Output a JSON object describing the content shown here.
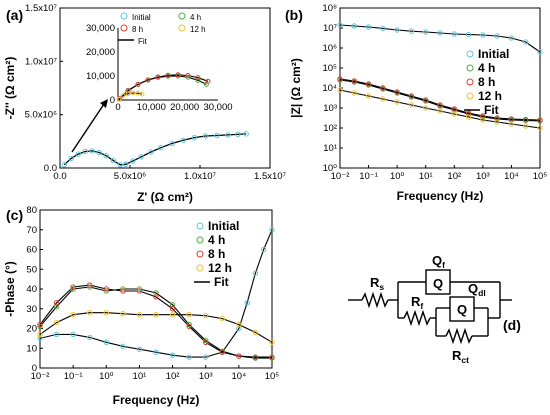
{
  "colors": {
    "Initial": "#5bc8e0",
    "4 h": "#4cae3c",
    "8 h": "#e53935",
    "12 h": "#f2c230",
    "fit": "#000000"
  },
  "chart_data": [
    {
      "id": "a",
      "panel_label": "(a)",
      "type": "scatter",
      "xlabel": "Z' (Ω cm²)",
      "ylabel": "-Z'' (Ω cm²)",
      "xlim": [
        0,
        15000000
      ],
      "ylim": [
        0,
        15000000
      ],
      "x_ticks": [
        "0.0",
        "5.0x10⁶",
        "1.0x10⁷",
        "1.5x10⁷"
      ],
      "y_ticks": [
        "0.0",
        "5.0x10⁶",
        "1.0x10⁷",
        "1.5x10⁷"
      ],
      "legend": [
        "Initial",
        "4 h",
        "8 h",
        "12 h",
        "Fit"
      ],
      "series": [
        {
          "name": "Initial",
          "x": [
            300000,
            800000,
            1300000,
            1800000,
            2300000,
            2800000,
            3300000,
            3800000,
            4300000,
            4700000,
            5200000,
            5800000,
            6500000,
            7200000,
            8000000,
            8800000,
            9600000,
            10400000,
            11200000,
            12000000,
            12700000,
            13300000
          ],
          "y": [
            300000,
            900000,
            1300000,
            1550000,
            1600000,
            1450000,
            1150000,
            700000,
            300000,
            350000,
            650000,
            1050000,
            1500000,
            1900000,
            2300000,
            2600000,
            2850000,
            3000000,
            3050000,
            3100000,
            3150000,
            3200000
          ]
        }
      ],
      "inset": {
        "xlim": [
          0,
          30000
        ],
        "ylim": [
          0,
          30000
        ],
        "x_ticks": [
          "0",
          "10,000",
          "20,000",
          "30,000"
        ],
        "y_ticks": [
          "0",
          "10,000",
          "20,000",
          "30,000"
        ],
        "series": [
          {
            "name": "4 h",
            "x": [
              500,
              3000,
              6000,
              9000,
              12000,
              15000,
              18000,
              21000,
              24000,
              26500
            ],
            "y": [
              500,
              4000,
              6500,
              8300,
              9400,
              9900,
              10000,
              9500,
              8200,
              6500
            ]
          },
          {
            "name": "8 h",
            "x": [
              500,
              3000,
              6000,
              9000,
              12000,
              15000,
              18000,
              21000,
              24000,
              27000
            ],
            "y": [
              500,
              3800,
              6500,
              8400,
              9600,
              10300,
              10500,
              10200,
              9300,
              7800
            ]
          },
          {
            "name": "12 h",
            "x": [
              300,
              1500,
              3000,
              4500,
              6000,
              7200
            ],
            "y": [
              300,
              1800,
              2600,
              2900,
              2800,
              2500
            ]
          }
        ]
      }
    },
    {
      "id": "b",
      "panel_label": "(b)",
      "type": "scatter",
      "xscale": "log",
      "yscale": "log",
      "xlabel": "Frequency (Hz)",
      "ylabel": "|Z| (Ω cm²)",
      "xlim": [
        0.01,
        100000
      ],
      "ylim": [
        1,
        100000000
      ],
      "x_ticks": [
        "10⁻²",
        "10⁻¹",
        "10⁰",
        "10¹",
        "10²",
        "10³",
        "10⁴",
        "10⁵"
      ],
      "y_ticks": [
        "10⁰",
        "10¹",
        "10²",
        "10³",
        "10⁴",
        "10⁵",
        "10⁶",
        "10⁷",
        "10⁸"
      ],
      "legend": [
        "Initial",
        "4 h",
        "8 h",
        "12 h",
        "Fit"
      ],
      "series": [
        {
          "name": "Initial",
          "logf": [
            -2,
            -1.5,
            -1,
            -0.5,
            0,
            0.5,
            1,
            1.5,
            2,
            2.5,
            3,
            3.5,
            4,
            4.5,
            5
          ],
          "logz": [
            7.15,
            7.1,
            7.05,
            6.98,
            6.9,
            6.84,
            6.8,
            6.75,
            6.7,
            6.67,
            6.65,
            6.6,
            6.5,
            6.3,
            5.8
          ]
        },
        {
          "name": "4 h",
          "logf": [
            -2,
            -1.5,
            -1,
            -0.5,
            0,
            0.5,
            1,
            1.5,
            2,
            2.5,
            3,
            3.5,
            4,
            4.5,
            5
          ],
          "logz": [
            4.4,
            4.3,
            4.15,
            3.95,
            3.75,
            3.55,
            3.35,
            3.1,
            2.9,
            2.7,
            2.55,
            2.45,
            2.4,
            2.38,
            2.35
          ]
        },
        {
          "name": "8 h",
          "logf": [
            -2,
            -1.5,
            -1,
            -0.5,
            0,
            0.5,
            1,
            1.5,
            2,
            2.5,
            3,
            3.5,
            4,
            4.5,
            5
          ],
          "logz": [
            4.45,
            4.35,
            4.2,
            4.0,
            3.8,
            3.6,
            3.4,
            3.15,
            2.95,
            2.75,
            2.6,
            2.5,
            2.45,
            2.42,
            2.4
          ]
        },
        {
          "name": "12 h",
          "logf": [
            -2,
            -1.5,
            -1,
            -0.5,
            0,
            0.5,
            1,
            1.5,
            2,
            2.5,
            3,
            3.5,
            4,
            4.5,
            5
          ],
          "logz": [
            3.9,
            3.75,
            3.6,
            3.45,
            3.3,
            3.15,
            3.0,
            2.85,
            2.7,
            2.55,
            2.4,
            2.3,
            2.2,
            2.1,
            2.0
          ]
        }
      ]
    },
    {
      "id": "c",
      "panel_label": "(c)",
      "type": "scatter",
      "xscale": "log",
      "xlabel": "Frequency (Hz)",
      "ylabel": "-Phase (°)",
      "xlim": [
        0.01,
        100000
      ],
      "ylim": [
        0,
        80
      ],
      "x_ticks": [
        "10⁻²",
        "10⁻¹",
        "10⁰",
        "10¹",
        "10²",
        "10³",
        "10⁴",
        "10⁵"
      ],
      "y_ticks": [
        "0",
        "10",
        "20",
        "30",
        "40",
        "50",
        "60",
        "70",
        "80"
      ],
      "legend": [
        "Initial",
        "4 h",
        "8 h",
        "12 h",
        "Fit"
      ],
      "series": [
        {
          "name": "Initial",
          "logf": [
            -2,
            -1.5,
            -1,
            -0.5,
            0,
            0.5,
            1,
            1.5,
            2,
            2.5,
            3,
            3.5,
            4,
            4.25,
            4.5,
            4.75,
            5
          ],
          "phase": [
            15,
            17,
            17,
            15.5,
            13,
            11,
            9.5,
            8,
            6.5,
            5.5,
            5.5,
            8,
            20,
            33,
            48,
            60,
            70
          ]
        },
        {
          "name": "4 h",
          "logf": [
            -2,
            -1.5,
            -1,
            -0.5,
            0,
            0.5,
            1,
            1.5,
            2,
            2.5,
            3,
            3.5,
            4,
            4.5,
            5
          ],
          "phase": [
            21,
            31,
            40,
            41,
            39,
            40,
            40,
            38,
            32,
            22,
            14,
            8.5,
            6,
            5,
            5
          ]
        },
        {
          "name": "8 h",
          "logf": [
            -2,
            -1.5,
            -1,
            -0.5,
            0,
            0.5,
            1,
            1.5,
            2,
            2.5,
            3,
            3.5,
            4,
            4.5,
            5
          ],
          "phase": [
            22,
            33,
            41,
            42,
            40,
            39,
            39,
            36,
            30,
            21,
            13,
            8,
            6,
            5.5,
            5.5
          ]
        },
        {
          "name": "12 h",
          "logf": [
            -2,
            -1.5,
            -1,
            -0.5,
            0,
            0.5,
            1,
            1.5,
            2,
            2.5,
            3,
            3.5,
            4,
            4.5,
            5
          ],
          "phase": [
            17,
            23,
            27,
            28,
            28,
            27.5,
            27,
            27,
            27,
            27,
            26.5,
            25,
            22,
            18,
            13
          ]
        }
      ]
    }
  ],
  "circuit": {
    "panel_label": "(d)",
    "labels": {
      "rs": [
        "R",
        "s"
      ],
      "rf": [
        "R",
        "f"
      ],
      "rct": [
        "R",
        "ct"
      ],
      "qf": [
        "Q",
        "f"
      ],
      "qdl": [
        "Q",
        "dl"
      ],
      "q_box": "Q"
    }
  }
}
